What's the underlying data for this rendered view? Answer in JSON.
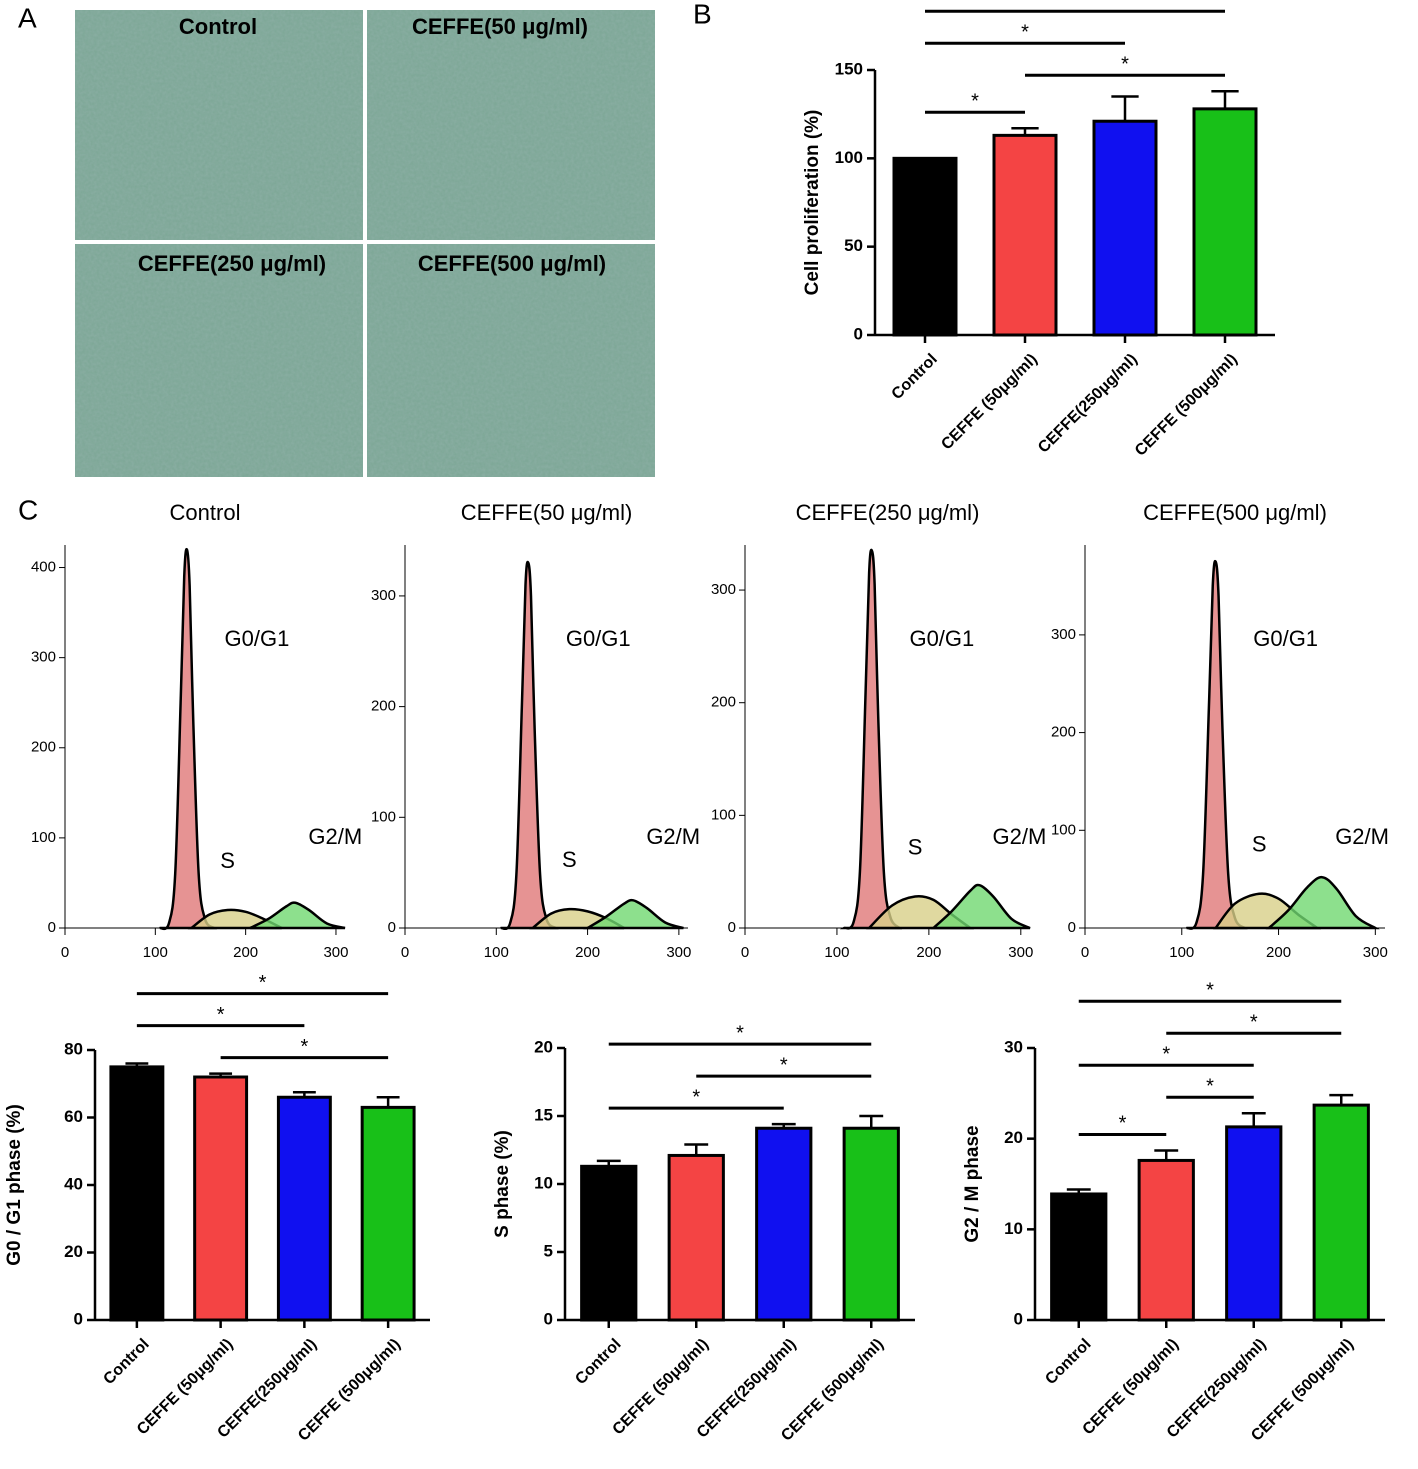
{
  "panel_labels": [
    "A",
    "B",
    "C"
  ],
  "images": [
    {
      "label": "Control"
    },
    {
      "label": "CEFFE(50 μg/ml)"
    },
    {
      "label": "CEFFE(250 μg/ml)"
    },
    {
      "label": "CEFFE(500 μg/ml)"
    }
  ],
  "chart_data": [
    {
      "type": "bar",
      "ylabel": "Cell proliferation  (%)",
      "categories": [
        "Control",
        "CEFFE (50μg/ml)",
        "CEFFE(250μg/ml)",
        "CEFFE (500μg/ml)"
      ],
      "values": [
        100,
        113,
        121,
        128
      ],
      "errors": [
        0,
        4,
        14,
        10
      ],
      "colors": [
        "#000000",
        "#f44444",
        "#1010f0",
        "#18c018"
      ],
      "ylim": [
        0,
        150
      ],
      "yticks": [
        0,
        50,
        100,
        150
      ],
      "significance": [
        {
          "from": 0,
          "to": 1,
          "label": "*"
        },
        {
          "from": 1,
          "to": 3,
          "label": "*"
        },
        {
          "from": 0,
          "to": 2,
          "label": "*"
        },
        {
          "from": 0,
          "to": 3,
          "label": "*"
        }
      ]
    },
    {
      "type": "area",
      "title": "Control",
      "xlim": [
        0,
        310
      ],
      "xticks": [
        0,
        100,
        200,
        300
      ],
      "ylim": [
        0,
        425
      ],
      "yticks": [
        0,
        100,
        200,
        300,
        400
      ],
      "series": [
        {
          "name": "G0/G1",
          "color": "#e07878",
          "x": [
            105,
            115,
            122,
            128,
            132,
            135,
            138,
            142,
            148,
            155,
            165
          ],
          "values": [
            0,
            5,
            60,
            250,
            390,
            420,
            380,
            230,
            60,
            10,
            0
          ]
        },
        {
          "name": "S",
          "color": "#d8d088",
          "x": [
            140,
            160,
            180,
            200,
            220,
            240
          ],
          "values": [
            0,
            15,
            20,
            18,
            10,
            0
          ]
        },
        {
          "name": "G2/M",
          "color": "#70d870",
          "x": [
            205,
            225,
            245,
            255,
            270,
            290,
            310
          ],
          "values": [
            0,
            10,
            24,
            28,
            20,
            5,
            0
          ]
        }
      ]
    },
    {
      "type": "area",
      "title": "CEFFE(50 μg/ml)",
      "xlim": [
        0,
        310
      ],
      "xticks": [
        0,
        100,
        200,
        300
      ],
      "ylim": [
        0,
        346
      ],
      "yticks": [
        0,
        100,
        200,
        300
      ],
      "series": [
        {
          "name": "G0/G1",
          "color": "#e07878",
          "x": [
            105,
            115,
            122,
            128,
            132,
            135,
            138,
            142,
            148,
            155,
            165
          ],
          "values": [
            0,
            4,
            48,
            200,
            310,
            330,
            300,
            180,
            48,
            8,
            0
          ]
        },
        {
          "name": "S",
          "color": "#d8d088",
          "x": [
            140,
            160,
            180,
            200,
            220,
            240
          ],
          "values": [
            0,
            13,
            17,
            15,
            9,
            0
          ]
        },
        {
          "name": "G2/M",
          "color": "#70d870",
          "x": [
            200,
            220,
            240,
            250,
            265,
            285,
            305
          ],
          "values": [
            0,
            10,
            22,
            25,
            18,
            5,
            0
          ]
        }
      ]
    },
    {
      "type": "area",
      "title": "CEFFE(250 μg/ml)",
      "xlim": [
        0,
        310
      ],
      "xticks": [
        0,
        100,
        200,
        300
      ],
      "ylim": [
        0,
        340
      ],
      "yticks": [
        0,
        100,
        200,
        300
      ],
      "series": [
        {
          "name": "G0/G1",
          "color": "#e07878",
          "x": [
            108,
            118,
            125,
            131,
            135,
            138,
            141,
            145,
            151,
            158,
            168
          ],
          "values": [
            0,
            5,
            50,
            205,
            315,
            335,
            305,
            185,
            50,
            10,
            0
          ]
        },
        {
          "name": "S",
          "color": "#d8d088",
          "x": [
            135,
            160,
            185,
            205,
            225,
            245
          ],
          "values": [
            0,
            20,
            28,
            25,
            12,
            0
          ]
        },
        {
          "name": "G2/M",
          "color": "#70d870",
          "x": [
            205,
            225,
            245,
            255,
            270,
            290,
            310
          ],
          "values": [
            0,
            15,
            33,
            38,
            28,
            8,
            0
          ]
        }
      ]
    },
    {
      "type": "area",
      "title": "CEFFE(500 μg/ml)",
      "xlim": [
        0,
        310
      ],
      "xticks": [
        0,
        100,
        200,
        300
      ],
      "ylim": [
        0,
        392
      ],
      "yticks": [
        0,
        100,
        200,
        300
      ],
      "series": [
        {
          "name": "G0/G1",
          "color": "#e07878",
          "x": [
            105,
            115,
            122,
            128,
            132,
            135,
            138,
            142,
            148,
            155,
            165
          ],
          "values": [
            0,
            5,
            55,
            225,
            350,
            375,
            340,
            205,
            55,
            10,
            0
          ]
        },
        {
          "name": "S",
          "color": "#d8d088",
          "x": [
            135,
            155,
            180,
            200,
            220,
            240
          ],
          "values": [
            0,
            25,
            35,
            30,
            14,
            0
          ]
        },
        {
          "name": "G2/M",
          "color": "#70d870",
          "x": [
            190,
            210,
            230,
            245,
            260,
            280,
            300
          ],
          "values": [
            0,
            18,
            42,
            52,
            40,
            12,
            0
          ]
        }
      ]
    },
    {
      "type": "bar",
      "ylabel": "G0 / G1 phase (%)",
      "categories": [
        "Control",
        "CEFFE (50μg/ml)",
        "CEFFE(250μg/ml)",
        "CEFFE (500μg/ml)"
      ],
      "values": [
        75,
        72,
        66,
        63
      ],
      "errors": [
        1,
        1,
        1.5,
        3
      ],
      "colors": [
        "#000000",
        "#f44444",
        "#1010f0",
        "#18c018"
      ],
      "ylim": [
        0,
        80
      ],
      "yticks": [
        0,
        20,
        40,
        60,
        80
      ],
      "significance": [
        {
          "from": 1,
          "to": 3,
          "label": "*"
        },
        {
          "from": 0,
          "to": 2,
          "label": "*"
        },
        {
          "from": 0,
          "to": 3,
          "label": "*"
        }
      ]
    },
    {
      "type": "bar",
      "ylabel": "S phase (%)",
      "categories": [
        "Control",
        "CEFFE (50μg/ml)",
        "CEFFE(250μg/ml)",
        "CEFFE (500μg/ml)"
      ],
      "values": [
        11.3,
        12.1,
        14.1,
        14.1
      ],
      "errors": [
        0.4,
        0.8,
        0.3,
        0.9
      ],
      "colors": [
        "#000000",
        "#f44444",
        "#1010f0",
        "#18c018"
      ],
      "ylim": [
        0,
        20
      ],
      "yticks": [
        0,
        5,
        10,
        15,
        20
      ],
      "significance": [
        {
          "from": 0,
          "to": 2,
          "label": "*"
        },
        {
          "from": 1,
          "to": 3,
          "label": "*"
        },
        {
          "from": 0,
          "to": 3,
          "label": "*"
        }
      ]
    },
    {
      "type": "bar",
      "ylabel": "G2 / M phase",
      "categories": [
        "Control",
        "CEFFE (50μg/ml)",
        "CEFFE(250μg/ml)",
        "CEFFE (500μg/ml)"
      ],
      "values": [
        13.9,
        17.6,
        21.3,
        23.7
      ],
      "errors": [
        0.5,
        1.1,
        1.5,
        1.1
      ],
      "colors": [
        "#000000",
        "#f44444",
        "#1010f0",
        "#18c018"
      ],
      "ylim": [
        0,
        30
      ],
      "yticks": [
        0,
        10,
        20,
        30
      ],
      "significance": [
        {
          "from": 0,
          "to": 1,
          "label": "*"
        },
        {
          "from": 1,
          "to": 2,
          "label": "*"
        },
        {
          "from": 0,
          "to": 2,
          "label": "*"
        },
        {
          "from": 1,
          "to": 3,
          "label": "*"
        },
        {
          "from": 0,
          "to": 3,
          "label": "*"
        }
      ]
    }
  ]
}
